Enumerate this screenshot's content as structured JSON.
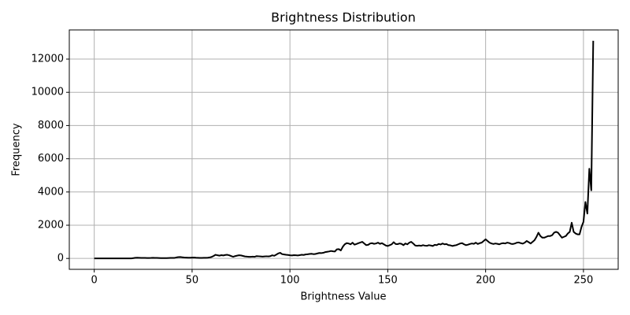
{
  "chart_data": {
    "type": "line",
    "title": "Brightness Distribution",
    "x_label": "Brightness Value",
    "y_label": "Frequency",
    "x": [
      0,
      1,
      2,
      3,
      4,
      5,
      6,
      7,
      8,
      9,
      10,
      11,
      12,
      13,
      14,
      15,
      16,
      17,
      18,
      19,
      20,
      21,
      22,
      23,
      24,
      25,
      26,
      27,
      28,
      29,
      30,
      31,
      32,
      33,
      34,
      35,
      36,
      37,
      38,
      39,
      40,
      41,
      42,
      43,
      44,
      45,
      46,
      47,
      48,
      49,
      50,
      51,
      52,
      53,
      54,
      55,
      56,
      57,
      58,
      59,
      60,
      61,
      62,
      63,
      64,
      65,
      66,
      67,
      68,
      69,
      70,
      71,
      72,
      73,
      74,
      75,
      76,
      77,
      78,
      79,
      80,
      81,
      82,
      83,
      84,
      85,
      86,
      87,
      88,
      89,
      90,
      91,
      92,
      93,
      94,
      95,
      96,
      97,
      98,
      99,
      100,
      101,
      102,
      103,
      104,
      105,
      106,
      107,
      108,
      109,
      110,
      111,
      112,
      113,
      114,
      115,
      116,
      117,
      118,
      119,
      120,
      121,
      122,
      123,
      124,
      125,
      126,
      127,
      128,
      129,
      130,
      131,
      132,
      133,
      134,
      135,
      136,
      137,
      138,
      139,
      140,
      141,
      142,
      143,
      144,
      145,
      146,
      147,
      148,
      149,
      150,
      151,
      152,
      153,
      154,
      155,
      156,
      157,
      158,
      159,
      160,
      161,
      162,
      163,
      164,
      165,
      166,
      167,
      168,
      169,
      170,
      171,
      172,
      173,
      174,
      175,
      176,
      177,
      178,
      179,
      180,
      181,
      182,
      183,
      184,
      185,
      186,
      187,
      188,
      189,
      190,
      191,
      192,
      193,
      194,
      195,
      196,
      197,
      198,
      199,
      200,
      201,
      202,
      203,
      204,
      205,
      206,
      207,
      208,
      209,
      210,
      211,
      212,
      213,
      214,
      215,
      216,
      217,
      218,
      219,
      220,
      221,
      222,
      223,
      224,
      225,
      226,
      227,
      228,
      229,
      230,
      231,
      232,
      233,
      234,
      235,
      236,
      237,
      238,
      239,
      240,
      241,
      242,
      243,
      244,
      245,
      246,
      247,
      248,
      249,
      250,
      251,
      252,
      253,
      254,
      255
    ],
    "series": [
      {
        "color": "#000000",
        "values": [
          0,
          0,
          0,
          0,
          0,
          0,
          0,
          0,
          0,
          0,
          0,
          0,
          0,
          0,
          0,
          0,
          0,
          0,
          0,
          5,
          20,
          40,
          45,
          40,
          35,
          30,
          30,
          25,
          25,
          30,
          40,
          35,
          30,
          25,
          20,
          20,
          20,
          20,
          25,
          30,
          30,
          35,
          60,
          80,
          85,
          70,
          55,
          50,
          45,
          45,
          50,
          55,
          45,
          40,
          35,
          35,
          40,
          40,
          45,
          60,
          90,
          150,
          220,
          190,
          170,
          200,
          180,
          210,
          220,
          190,
          140,
          100,
          140,
          170,
          190,
          180,
          150,
          120,
          110,
          100,
          100,
          110,
          100,
          140,
          130,
          120,
          110,
          120,
          130,
          120,
          140,
          190,
          160,
          230,
          300,
          340,
          260,
          240,
          220,
          210,
          190,
          180,
          200,
          190,
          180,
          200,
          220,
          210,
          240,
          250,
          270,
          280,
          260,
          270,
          300,
          330,
          320,
          340,
          380,
          400,
          420,
          450,
          430,
          420,
          550,
          560,
          480,
          700,
          850,
          920,
          900,
          850,
          950,
          830,
          870,
          920,
          960,
          1000,
          900,
          800,
          820,
          900,
          920,
          880,
          900,
          950,
          880,
          920,
          850,
          780,
          750,
          800,
          850,
          980,
          870,
          860,
          900,
          880,
          800,
          900,
          850,
          950,
          1000,
          900,
          780,
          760,
          780,
          760,
          800,
          770,
          760,
          800,
          780,
          750,
          820,
          800,
          870,
          840,
          900,
          850,
          870,
          800,
          790,
          750,
          780,
          800,
          850,
          900,
          920,
          850,
          800,
          830,
          870,
          900,
          880,
          950,
          870,
          920,
          950,
          1050,
          1150,
          1050,
          950,
          900,
          870,
          900,
          880,
          850,
          900,
          920,
          900,
          950,
          930,
          880,
          870,
          900,
          950,
          960,
          920,
          890,
          950,
          1050,
          980,
          900,
          1000,
          1100,
          1300,
          1550,
          1350,
          1250,
          1250,
          1300,
          1350,
          1350,
          1400,
          1550,
          1600,
          1550,
          1400,
          1250,
          1300,
          1350,
          1500,
          1600,
          2150,
          1600,
          1500,
          1450,
          1450,
          1900,
          2200,
          3400,
          2700,
          5400,
          4100,
          13100
        ]
      }
    ],
    "xlim": [
      -12.75,
      267.75
    ],
    "xticks": [
      0,
      50,
      100,
      150,
      200,
      250
    ],
    "ylim": [
      -655,
      13755
    ],
    "yticks": [
      0,
      2000,
      4000,
      6000,
      8000,
      10000,
      12000
    ],
    "grid": true
  }
}
